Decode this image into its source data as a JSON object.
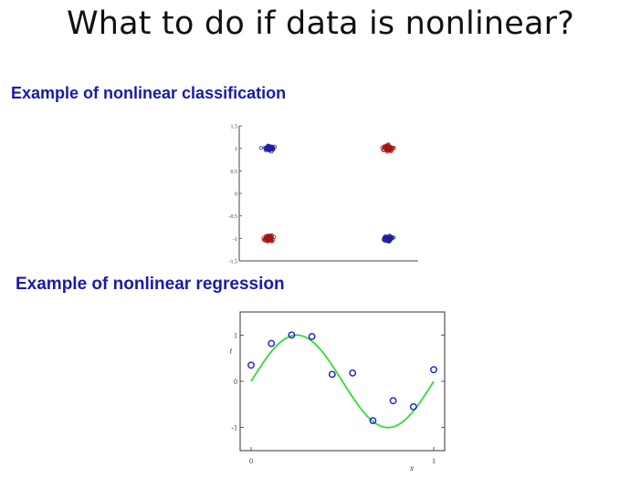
{
  "slide": {
    "title": "What to do if data is nonlinear?",
    "section_classification": "Example of nonlinear classification",
    "section_regression": "Example of nonlinear regression"
  },
  "colors": {
    "heading": "#1a1aa8",
    "class_blue": "#1f1f9e",
    "class_red": "#a31515",
    "curve": "#33dd33",
    "marker": "#1a1ad0"
  },
  "chart_data": [
    {
      "type": "scatter",
      "title": "",
      "xlabel": "",
      "ylabel": "",
      "xlim": [
        -1.5,
        1.5
      ],
      "ylim": [
        -1.5,
        1.5
      ],
      "yticks": [
        "1.5",
        "1",
        "0.5",
        "0",
        "-0.5",
        "-1",
        "-1.5"
      ],
      "grid": false,
      "series": [
        {
          "class": "blue",
          "clusters": [
            {
              "center": [
                -1,
                1
              ]
            },
            {
              "center": [
                1,
                -1
              ]
            }
          ]
        },
        {
          "class": "red",
          "clusters": [
            {
              "center": [
                1,
                1
              ]
            },
            {
              "center": [
                -1,
                -1
              ]
            }
          ]
        }
      ]
    },
    {
      "type": "line",
      "title": "",
      "xlabel": "x",
      "ylabel": "t",
      "xlim": [
        0,
        1
      ],
      "ylim": [
        -1.5,
        1.5
      ],
      "xticks": [
        "0",
        "1"
      ],
      "yticks": [
        "1",
        "0",
        "-1"
      ],
      "curve": "sin(2πx)",
      "points": {
        "x": [
          0.0,
          0.111,
          0.222,
          0.333,
          0.444,
          0.556,
          0.667,
          0.778,
          0.889,
          1.0
        ],
        "y": [
          0.35,
          0.82,
          1.0,
          0.97,
          0.15,
          0.18,
          -0.85,
          -0.42,
          -0.55,
          0.25
        ]
      }
    }
  ]
}
